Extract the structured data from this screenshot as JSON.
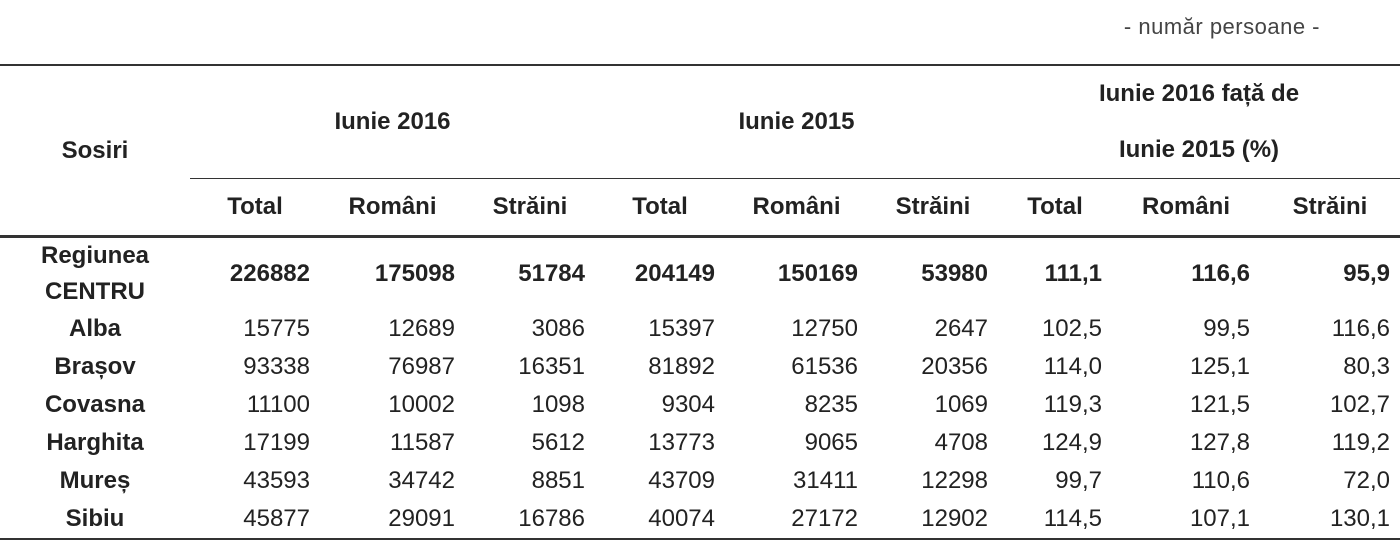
{
  "unit_note": "- număr persoane -",
  "header": {
    "row_label": "Sosiri",
    "groups": [
      "Iunie 2016",
      "Iunie 2015",
      "Iunie 2016 față de Iunie 2015 (%)"
    ],
    "subheaders": [
      "Total",
      "Români",
      "Străini",
      "Total",
      "Români",
      "Străini",
      "Total",
      "Români",
      "Străini"
    ]
  },
  "rows": [
    {
      "label": "Regiunea CENTRU",
      "cells": [
        "226882",
        "175098",
        "51784",
        "204149",
        "150169",
        "53980",
        "111,1",
        "116,6",
        "95,9"
      ]
    },
    {
      "label": "Alba",
      "cells": [
        "15775",
        "12689",
        "3086",
        "15397",
        "12750",
        "2647",
        "102,5",
        "99,5",
        "116,6"
      ]
    },
    {
      "label": "Brașov",
      "cells": [
        "93338",
        "76987",
        "16351",
        "81892",
        "61536",
        "20356",
        "114,0",
        "125,1",
        "80,3"
      ]
    },
    {
      "label": "Covasna",
      "cells": [
        "11100",
        "10002",
        "1098",
        "9304",
        "8235",
        "1069",
        "119,3",
        "121,5",
        "102,7"
      ]
    },
    {
      "label": "Harghita",
      "cells": [
        "17199",
        "11587",
        "5612",
        "13773",
        "9065",
        "4708",
        "124,9",
        "127,8",
        "119,2"
      ]
    },
    {
      "label": "Mureș",
      "cells": [
        "43593",
        "34742",
        "8851",
        "43709",
        "31411",
        "12298",
        "99,7",
        "110,6",
        "72,0"
      ]
    },
    {
      "label": "Sibiu",
      "cells": [
        "45877",
        "29091",
        "16786",
        "40074",
        "27172",
        "12902",
        "114,5",
        "107,1",
        "130,1"
      ]
    }
  ]
}
